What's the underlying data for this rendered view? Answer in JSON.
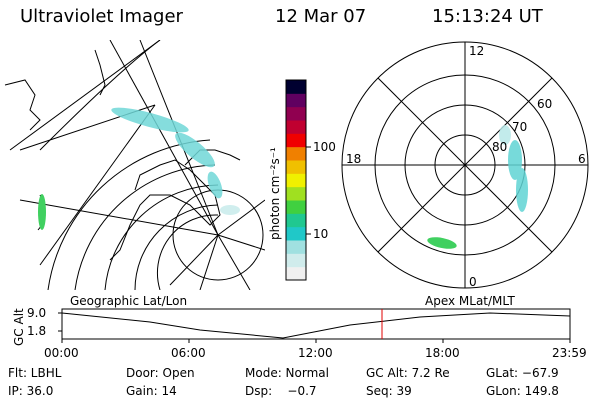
{
  "header": {
    "instrument": "Ultraviolet Imager",
    "date": "12 Mar 07",
    "time": "15:13:24 UT"
  },
  "colorbar": {
    "unit_label": "photon cm⁻²s⁻¹",
    "ticks": [
      "100",
      "10"
    ],
    "colors": [
      "#f0f0f0",
      "#d0ecec",
      "#a0e0e0",
      "#20c8c8",
      "#20c890",
      "#40d040",
      "#a0e020",
      "#f0f000",
      "#f0c000",
      "#f08000",
      "#f00000",
      "#c00030",
      "#900050",
      "#600060",
      "#000030"
    ]
  },
  "polar_plot": {
    "mlt_labels": {
      "top": "12",
      "left": "18",
      "right": "6",
      "bottom": "0"
    },
    "mlat_labels": [
      "60",
      "70",
      "80"
    ]
  },
  "altitude_plot": {
    "ylabel": "GC Alt",
    "yticks": [
      "9.0",
      "1.8"
    ],
    "left_title": "Geographic Lat/Lon",
    "right_title": "Apex MLat/MLT",
    "xticks": [
      "00:00",
      "06:00",
      "12:00",
      "18:00",
      "23:59"
    ],
    "marker_color": "#e00000"
  },
  "info": {
    "row1": {
      "filter": "Flt: LBHL",
      "door": "Door: Open",
      "mode": "Mode: Normal",
      "gc_alt": "GC Alt: 7.2 Re",
      "glat": "GLat: −67.9"
    },
    "row2": {
      "ip": "IP: 36.0",
      "gain": "Gain: 14",
      "dsp": "Dsp:    −0.7",
      "seq": "Seq: 39",
      "glon": "GLon: 149.8"
    }
  }
}
